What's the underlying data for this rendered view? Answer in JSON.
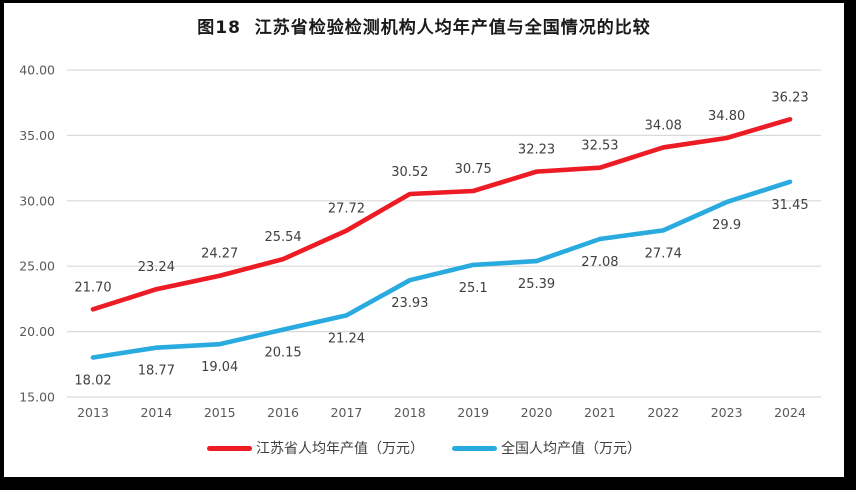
{
  "chart_data": {
    "type": "line",
    "title": "图18  江苏省检验检测机构人均年产值与全国情况的比较",
    "categories": [
      "2013",
      "2014",
      "2015",
      "2016",
      "2017",
      "2018",
      "2019",
      "2020",
      "2021",
      "2022",
      "2023",
      "2024"
    ],
    "series": [
      {
        "name": "江苏省人均年产值（万元）",
        "color": "#ED1B23",
        "values": [
          21.7,
          23.24,
          24.27,
          25.54,
          27.72,
          30.52,
          30.75,
          32.23,
          32.53,
          34.08,
          34.8,
          36.23
        ],
        "labels": [
          "21.70",
          "23.24",
          "24.27",
          "25.54",
          "27.72",
          "30.52",
          "30.75",
          "32.23",
          "32.53",
          "34.08",
          "34.80",
          "36.23"
        ],
        "label_position": "above"
      },
      {
        "name": "全国人均产值（万元）",
        "color": "#29ABDF",
        "values": [
          18.02,
          18.77,
          19.04,
          20.15,
          21.24,
          23.93,
          25.1,
          25.39,
          27.08,
          27.74,
          29.9,
          31.45
        ],
        "labels": [
          "18.02",
          "18.77",
          "19.04",
          "20.15",
          "21.24",
          "23.93",
          "25.1",
          "25.39",
          "27.08",
          "27.74",
          "29.9",
          "31.45"
        ],
        "label_position": "below"
      }
    ],
    "ylim": [
      15,
      40
    ],
    "yticks": [
      40,
      35,
      30,
      25,
      20,
      15
    ],
    "ytick_labels": [
      "40.00",
      "35.00",
      "30.00",
      "25.00",
      "20.00",
      "15.00"
    ],
    "xlabel": "",
    "ylabel": "",
    "grid": "horizontal",
    "legend_position": "bottom",
    "colors": {
      "grid": "#D9D9D9",
      "axis_text": "#595959",
      "data_label": "#404040",
      "background": "#FFFFFF",
      "frame": "#000000"
    }
  }
}
